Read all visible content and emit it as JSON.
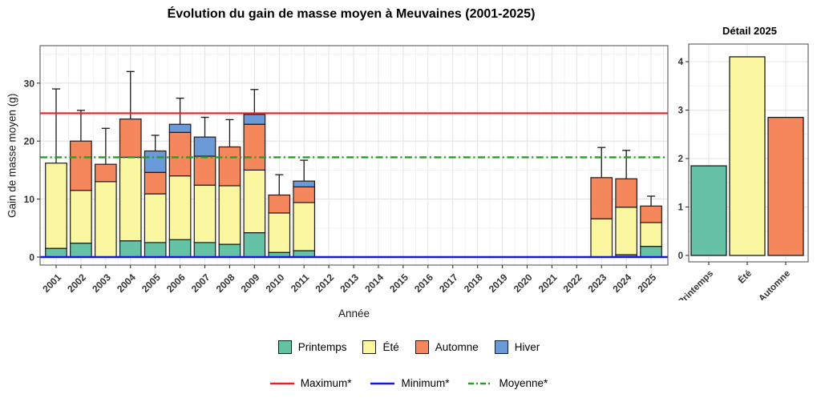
{
  "main_title": "Évolution du gain de masse moyen à Meuvaines (2001-2025)",
  "chart_data": [
    {
      "type": "bar",
      "stacked": true,
      "title": "Évolution du gain de masse moyen à Meuvaines (2001-2025)",
      "xlabel": "Année",
      "ylabel": "Gain de masse moyen (g)",
      "ylim": [
        0,
        36
      ],
      "y_ticks": [
        0,
        10,
        20,
        30
      ],
      "grid": true,
      "legend_position": "bottom",
      "categories": [
        "2001",
        "2002",
        "2003",
        "2004",
        "2005",
        "2006",
        "2007",
        "2008",
        "2009",
        "2010",
        "2011",
        "2012",
        "2013",
        "2014",
        "2015",
        "2016",
        "2017",
        "2018",
        "2019",
        "2020",
        "2021",
        "2022",
        "2023",
        "2024",
        "2025"
      ],
      "seasons": [
        {
          "name": "Printemps",
          "color": "#66C2A5"
        },
        {
          "name": "Été",
          "color": "#FBF6A0"
        },
        {
          "name": "Automne",
          "color": "#F4875C"
        },
        {
          "name": "Hiver",
          "color": "#6B9AD8"
        }
      ],
      "bars": [
        {
          "year": "2001",
          "segments": [
            {
              "season": "Printemps",
              "value": 1.5
            },
            {
              "season": "Été",
              "value": 14.7
            }
          ],
          "error_top": 29.0
        },
        {
          "year": "2002",
          "segments": [
            {
              "season": "Printemps",
              "value": 2.4
            },
            {
              "season": "Été",
              "value": 9.1
            },
            {
              "season": "Automne",
              "value": 8.5
            }
          ],
          "error_top": 25.3
        },
        {
          "year": "2003",
          "segments": [
            {
              "season": "Été",
              "value": 13.0
            },
            {
              "season": "Automne",
              "value": 3.0
            }
          ],
          "error_top": 22.2
        },
        {
          "year": "2004",
          "segments": [
            {
              "season": "Printemps",
              "value": 2.8
            },
            {
              "season": "Été",
              "value": 14.4
            },
            {
              "season": "Automne",
              "value": 6.6
            }
          ],
          "error_top": 32.0
        },
        {
          "year": "2005",
          "segments": [
            {
              "season": "Printemps",
              "value": 2.5
            },
            {
              "season": "Été",
              "value": 8.4
            },
            {
              "season": "Automne",
              "value": 3.7
            },
            {
              "season": "Hiver",
              "value": 3.7
            }
          ],
          "error_top": 21.0
        },
        {
          "year": "2006",
          "segments": [
            {
              "season": "Printemps",
              "value": 3.0
            },
            {
              "season": "Été",
              "value": 11.0
            },
            {
              "season": "Automne",
              "value": 7.5
            },
            {
              "season": "Hiver",
              "value": 1.4
            }
          ],
          "error_top": 27.4
        },
        {
          "year": "2007",
          "segments": [
            {
              "season": "Printemps",
              "value": 2.5
            },
            {
              "season": "Été",
              "value": 9.9
            },
            {
              "season": "Automne",
              "value": 5.0
            },
            {
              "season": "Hiver",
              "value": 3.3
            }
          ],
          "error_top": 24.1
        },
        {
          "year": "2008",
          "segments": [
            {
              "season": "Printemps",
              "value": 2.2
            },
            {
              "season": "Été",
              "value": 10.1
            },
            {
              "season": "Automne",
              "value": 6.7
            }
          ],
          "error_top": 23.7
        },
        {
          "year": "2009",
          "segments": [
            {
              "season": "Printemps",
              "value": 4.2
            },
            {
              "season": "Été",
              "value": 10.8
            },
            {
              "season": "Automne",
              "value": 7.9
            },
            {
              "season": "Hiver",
              "value": 1.7
            }
          ],
          "error_top": 28.9
        },
        {
          "year": "2010",
          "segments": [
            {
              "season": "Printemps",
              "value": 0.8
            },
            {
              "season": "Été",
              "value": 6.8
            },
            {
              "season": "Automne",
              "value": 3.1
            }
          ],
          "error_top": 14.2
        },
        {
          "year": "2011",
          "segments": [
            {
              "season": "Printemps",
              "value": 1.1
            },
            {
              "season": "Été",
              "value": 8.3
            },
            {
              "season": "Automne",
              "value": 2.7
            },
            {
              "season": "Hiver",
              "value": 1.0
            }
          ],
          "error_top": 16.7
        },
        {
          "year": "2023",
          "segments": [
            {
              "season": "Été",
              "value": 6.6
            },
            {
              "season": "Automne",
              "value": 7.1
            }
          ],
          "error_top": 18.9
        },
        {
          "year": "2024",
          "segments": [
            {
              "season": "Hiver",
              "value": 0.4
            },
            {
              "season": "Été",
              "value": 8.2
            },
            {
              "season": "Automne",
              "value": 4.9
            }
          ],
          "error_top": 18.4
        },
        {
          "year": "2025",
          "segments": [
            {
              "season": "Printemps",
              "value": 1.85
            },
            {
              "season": "Été",
              "value": 4.1
            },
            {
              "season": "Automne",
              "value": 2.85
            }
          ],
          "error_top": 10.5
        }
      ],
      "reference_lines": [
        {
          "name": "Maximum*",
          "value": 24.8,
          "color": "#EE2024",
          "style": "solid"
        },
        {
          "name": "Minimum*",
          "value": 0,
          "color": "#1515F0",
          "style": "solid"
        },
        {
          "name": "Moyenne*",
          "value": 17.2,
          "color": "#22A022",
          "style": "dashdot"
        }
      ]
    },
    {
      "type": "bar",
      "title": "Détail 2025",
      "categories": [
        "Printemps",
        "Été",
        "Automne"
      ],
      "values": [
        1.85,
        4.1,
        2.85
      ],
      "colors": [
        "#66C2A5",
        "#FBF6A0",
        "#F4875C"
      ],
      "y_ticks": [
        0,
        1,
        2,
        3,
        4
      ],
      "ylim": [
        0,
        4.4
      ],
      "grid": true
    }
  ]
}
